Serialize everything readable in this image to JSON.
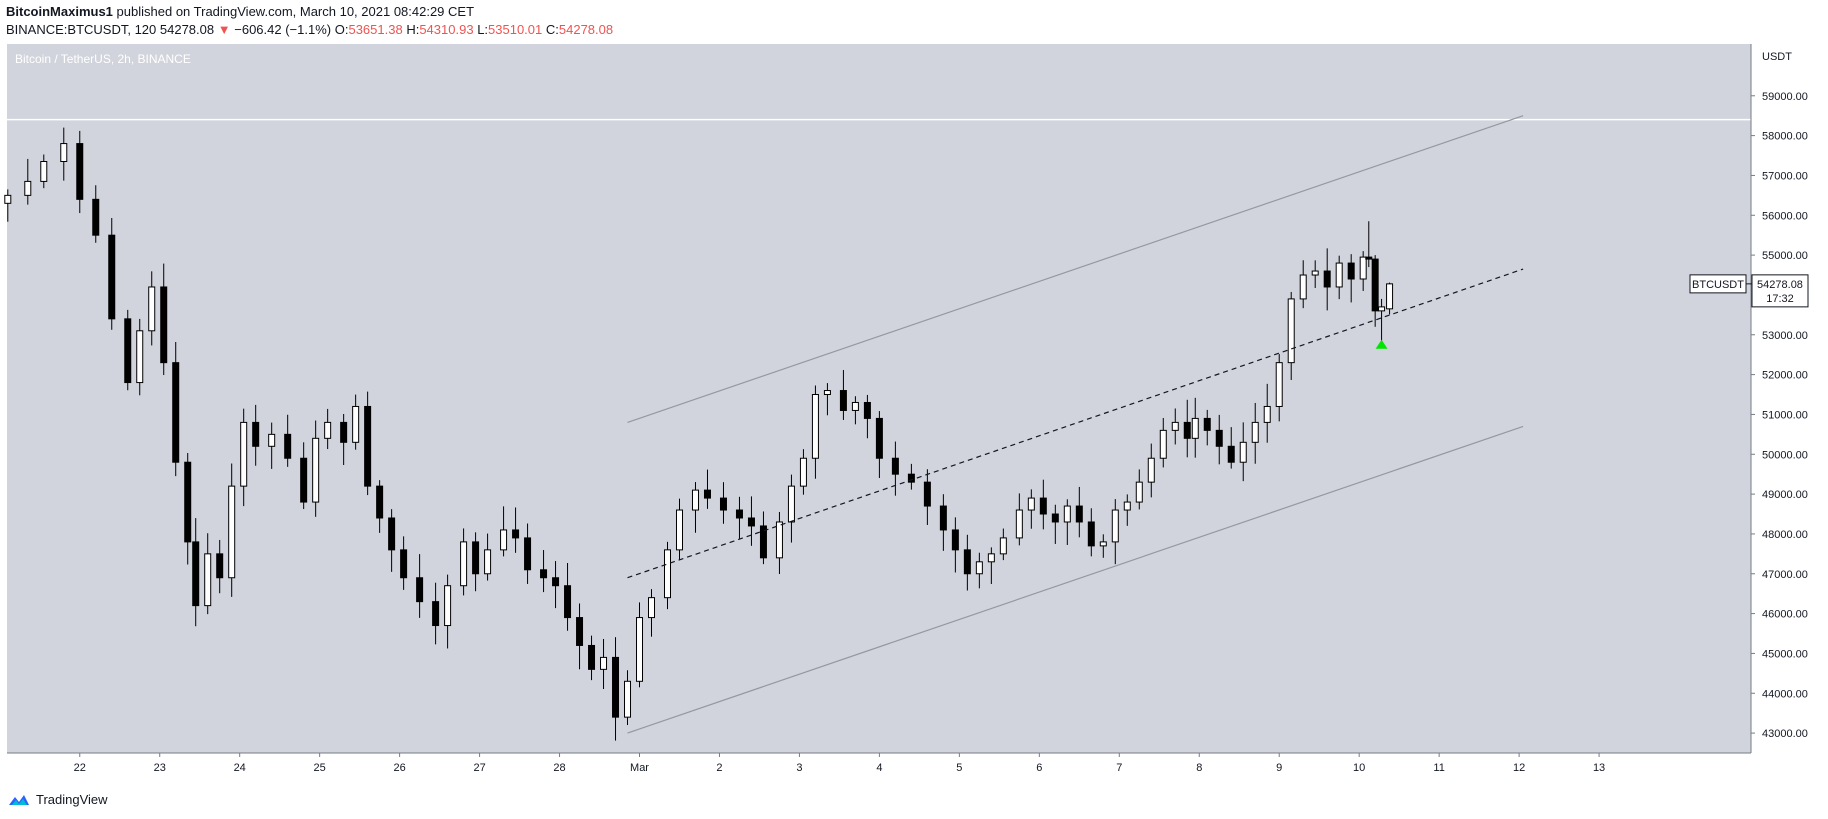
{
  "header": {
    "author": "BitcoinMaximus1",
    "published_text": "published on TradingView.com, March 10, 2021 08:42:29 CET",
    "symbol": "BINANCE:BTCUSDT, 120",
    "last_price": "54278.08",
    "change": "−606.42 (−1.1%)",
    "o_label": "O:",
    "o_value": "53651.38",
    "h_label": "H:",
    "h_value": "54310.93",
    "l_label": "L:",
    "l_value": "53510.01",
    "c_label": "C:",
    "c_value": "54278.08"
  },
  "watermark": "Bitcoin / TetherUS, 2h, BINANCE",
  "footer": {
    "brand": "TradingView",
    "logo_icon": "tradingview-logo-icon"
  },
  "price_label": {
    "symbol": "BTCUSDT",
    "price": "54278.08",
    "countdown": "17:32"
  },
  "axis": {
    "currency": "USDT"
  },
  "colors": {
    "plot_bg": "#d1d4dc",
    "up_candle": "#ffffff",
    "down_candle": "#000000",
    "channel": "#9598a1",
    "signal": "#00e600",
    "down_text": "#ef5350"
  },
  "chart_data": {
    "type": "candlestick",
    "title": "Bitcoin / TetherUS, 2h, BINANCE",
    "ylim": [
      42500,
      60300
    ],
    "y_ticks": [
      43000,
      44000,
      45000,
      46000,
      47000,
      48000,
      49000,
      50000,
      51000,
      52000,
      53000,
      54000,
      55000,
      56000,
      57000,
      58000,
      59000
    ],
    "x_ticks": [
      {
        "t": 1,
        "label": "22"
      },
      {
        "t": 2,
        "label": "23"
      },
      {
        "t": 3,
        "label": "24"
      },
      {
        "t": 4,
        "label": "25"
      },
      {
        "t": 5,
        "label": "26"
      },
      {
        "t": 6,
        "label": "27"
      },
      {
        "t": 7,
        "label": "28"
      },
      {
        "t": 8,
        "label": "Mar"
      },
      {
        "t": 9,
        "label": "2"
      },
      {
        "t": 10,
        "label": "3"
      },
      {
        "t": 11,
        "label": "4"
      },
      {
        "t": 12,
        "label": "5"
      },
      {
        "t": 13,
        "label": "6"
      },
      {
        "t": 14,
        "label": "7"
      },
      {
        "t": 15,
        "label": "8"
      },
      {
        "t": 16,
        "label": "9"
      },
      {
        "t": 17,
        "label": "10"
      },
      {
        "t": 18,
        "label": "11"
      },
      {
        "t": 19,
        "label": "12"
      },
      {
        "t": 20,
        "label": "13"
      }
    ],
    "x_range": [
      0.09,
      21.9
    ],
    "closes": [
      [
        0.1,
        56500
      ],
      [
        0.35,
        56850
      ],
      [
        0.55,
        57350
      ],
      [
        0.8,
        57800
      ],
      [
        1.0,
        56400
      ],
      [
        1.2,
        55500
      ],
      [
        1.4,
        53400
      ],
      [
        1.6,
        51800
      ],
      [
        1.75,
        53100
      ],
      [
        1.9,
        54200
      ],
      [
        2.05,
        52300
      ],
      [
        2.2,
        49800
      ],
      [
        2.35,
        47800
      ],
      [
        2.45,
        46200
      ],
      [
        2.6,
        47500
      ],
      [
        2.75,
        46900
      ],
      [
        2.9,
        49200
      ],
      [
        3.05,
        50800
      ],
      [
        3.2,
        50200
      ],
      [
        3.4,
        50500
      ],
      [
        3.6,
        49900
      ],
      [
        3.8,
        48800
      ],
      [
        3.95,
        50400
      ],
      [
        4.1,
        50800
      ],
      [
        4.3,
        50300
      ],
      [
        4.45,
        51200
      ],
      [
        4.6,
        49200
      ],
      [
        4.75,
        48400
      ],
      [
        4.9,
        47600
      ],
      [
        5.05,
        46900
      ],
      [
        5.25,
        46300
      ],
      [
        5.45,
        45700
      ],
      [
        5.6,
        46700
      ],
      [
        5.8,
        47800
      ],
      [
        5.95,
        47000
      ],
      [
        6.1,
        47600
      ],
      [
        6.3,
        48100
      ],
      [
        6.45,
        47900
      ],
      [
        6.6,
        47100
      ],
      [
        6.8,
        46900
      ],
      [
        6.95,
        46700
      ],
      [
        7.1,
        45900
      ],
      [
        7.25,
        45200
      ],
      [
        7.4,
        44600
      ],
      [
        7.55,
        44900
      ],
      [
        7.7,
        43400
      ],
      [
        7.85,
        44300
      ],
      [
        8.0,
        45900
      ],
      [
        8.15,
        46400
      ],
      [
        8.35,
        47600
      ],
      [
        8.5,
        48600
      ],
      [
        8.7,
        49100
      ],
      [
        8.85,
        48900
      ],
      [
        9.05,
        48600
      ],
      [
        9.25,
        48400
      ],
      [
        9.4,
        48200
      ],
      [
        9.55,
        47400
      ],
      [
        9.75,
        48300
      ],
      [
        9.9,
        49200
      ],
      [
        10.05,
        49900
      ],
      [
        10.2,
        51500
      ],
      [
        10.35,
        51600
      ],
      [
        10.55,
        51100
      ],
      [
        10.7,
        51300
      ],
      [
        10.85,
        50900
      ],
      [
        11.0,
        49900
      ],
      [
        11.2,
        49500
      ],
      [
        11.4,
        49300
      ],
      [
        11.6,
        48700
      ],
      [
        11.8,
        48100
      ],
      [
        11.95,
        47600
      ],
      [
        12.1,
        47000
      ],
      [
        12.25,
        47300
      ],
      [
        12.4,
        47500
      ],
      [
        12.55,
        47900
      ],
      [
        12.75,
        48600
      ],
      [
        12.9,
        48900
      ],
      [
        13.05,
        48500
      ],
      [
        13.2,
        48300
      ],
      [
        13.35,
        48700
      ],
      [
        13.5,
        48300
      ],
      [
        13.65,
        47700
      ],
      [
        13.8,
        47800
      ],
      [
        13.95,
        48600
      ],
      [
        14.1,
        48800
      ],
      [
        14.25,
        49300
      ],
      [
        14.4,
        49900
      ],
      [
        14.55,
        50600
      ],
      [
        14.7,
        50800
      ],
      [
        14.85,
        50400
      ],
      [
        14.95,
        50900
      ],
      [
        15.1,
        50600
      ],
      [
        15.25,
        50200
      ],
      [
        15.4,
        49800
      ],
      [
        15.55,
        50300
      ],
      [
        15.7,
        50800
      ],
      [
        15.85,
        51200
      ],
      [
        16.0,
        52300
      ],
      [
        16.15,
        53900
      ],
      [
        16.3,
        54500
      ],
      [
        16.45,
        54600
      ],
      [
        16.6,
        54200
      ],
      [
        16.75,
        54800
      ],
      [
        16.9,
        54400
      ],
      [
        17.0,
        54900
      ],
      [
        17.12,
        54900
      ],
      [
        17.2,
        53600
      ],
      [
        17.28,
        53700
      ],
      [
        17.4,
        54278.08
      ]
    ],
    "recent_candles": [
      {
        "x": 17.05,
        "open": 54400,
        "high": 55100,
        "low": 54100,
        "close": 54950
      },
      {
        "x": 17.12,
        "open": 54950,
        "high": 55850,
        "low": 54700,
        "close": 54900
      },
      {
        "x": 17.2,
        "open": 54900,
        "high": 55000,
        "low": 53200,
        "close": 53600
      },
      {
        "x": 17.28,
        "open": 53600,
        "high": 53900,
        "low": 52800,
        "close": 53700
      },
      {
        "x": 17.38,
        "open": 53651.38,
        "high": 54310.93,
        "low": 53510.01,
        "close": 54278.08
      }
    ],
    "resistance_line": {
      "price": 58400
    },
    "channel": {
      "upper": [
        [
          7.85,
          50800
        ],
        [
          19.05,
          58500
        ]
      ],
      "middle": [
        [
          7.85,
          46900
        ],
        [
          19.05,
          54650
        ]
      ],
      "lower": [
        [
          7.85,
          43000
        ],
        [
          19.05,
          50700
        ]
      ]
    },
    "signal_marker": {
      "x": 17.28,
      "price": 52800,
      "type": "up-triangle"
    },
    "last_price": 54278.08
  }
}
